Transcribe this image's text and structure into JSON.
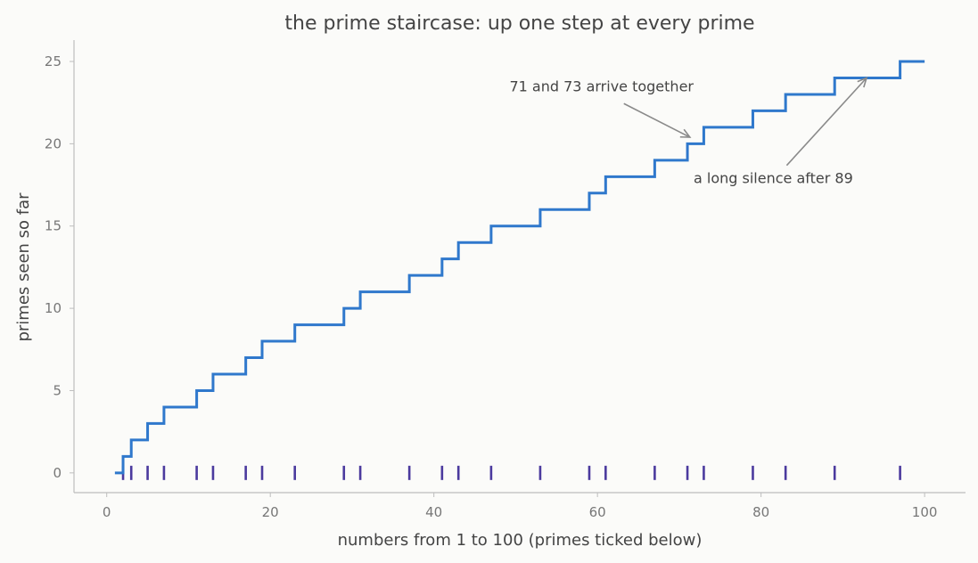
{
  "chart_data": {
    "type": "line",
    "step": "post",
    "title": "the prime staircase: up one step at every prime",
    "xlabel": "numbers from 1 to 100 (primes ticked below)",
    "ylabel": "primes seen so far",
    "xlim": [
      -4,
      105
    ],
    "ylim": [
      -1.2,
      26.3
    ],
    "xticks": [
      0,
      20,
      40,
      60,
      80,
      100
    ],
    "yticks": [
      0,
      5,
      10,
      15,
      20,
      25
    ],
    "grid": false,
    "series": [
      {
        "x": [
          1,
          2,
          3,
          5,
          7,
          11,
          13,
          17,
          19,
          23,
          29,
          31,
          37,
          41,
          43,
          47,
          53,
          59,
          61,
          67,
          71,
          73,
          79,
          83,
          89,
          97,
          100
        ],
        "y": [
          0,
          1,
          2,
          3,
          4,
          5,
          6,
          7,
          8,
          9,
          10,
          11,
          12,
          13,
          14,
          15,
          16,
          17,
          18,
          19,
          20,
          21,
          22,
          23,
          24,
          25,
          25
        ],
        "color": "#2f78cc"
      }
    ],
    "prime_ticks": [
      2,
      3,
      5,
      7,
      11,
      13,
      17,
      19,
      23,
      29,
      31,
      37,
      41,
      43,
      47,
      53,
      59,
      61,
      67,
      71,
      73,
      79,
      83,
      89,
      97
    ],
    "prime_tick_color": "#4b3a9e",
    "annotations": [
      {
        "text": "71 and 73 arrive together",
        "text_at": [
          60.5,
          23.2
        ],
        "arrow_to": [
          71.3,
          20.4
        ]
      },
      {
        "text": "a long silence after 89",
        "text_at": [
          81.5,
          17.6
        ],
        "arrow_to": [
          92.9,
          24.0
        ]
      }
    ]
  }
}
